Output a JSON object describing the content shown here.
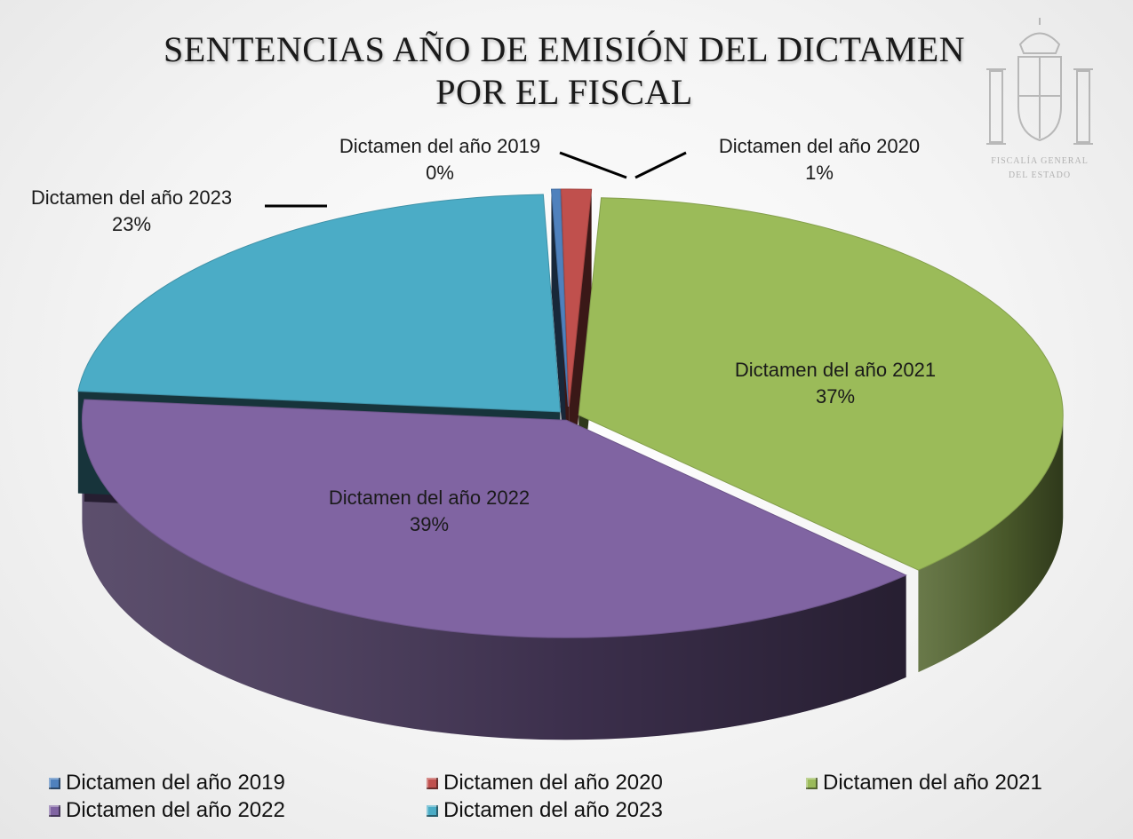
{
  "chart_data": {
    "type": "pie",
    "title_lines": [
      "SENTENCIAS AÑO DE EMISIÓN DEL DICTAMEN",
      "POR EL FISCAL"
    ],
    "categories": [
      "Dictamen del año 2019",
      "Dictamen del año 2020",
      "Dictamen del año 2021",
      "Dictamen del año 2022",
      "Dictamen del año 2023"
    ],
    "values": [
      0.3,
      1,
      37,
      39,
      23
    ],
    "value_labels": [
      "0%",
      "1%",
      "37%",
      "39%",
      "23%"
    ],
    "colors": [
      "#4f81bd",
      "#c0504d",
      "#9bbb59",
      "#8064a2",
      "#4bacc6"
    ],
    "legend_position": "bottom",
    "style": "3d-exploded"
  },
  "legend_items": [
    {
      "label": "Dictamen del año 2019",
      "color": "#4f81bd"
    },
    {
      "label": "Dictamen del año 2020",
      "color": "#c0504d"
    },
    {
      "label": "Dictamen del año 2021",
      "color": "#9bbb59"
    },
    {
      "label": "Dictamen del año 2022",
      "color": "#8064a2"
    },
    {
      "label": "Dictamen del año 2023",
      "color": "#4bacc6"
    }
  ],
  "emblem": {
    "name": "coat-of-arms-icon",
    "text_lines": [
      "FISCALÍA GENERAL",
      "DEL ESTADO"
    ]
  }
}
